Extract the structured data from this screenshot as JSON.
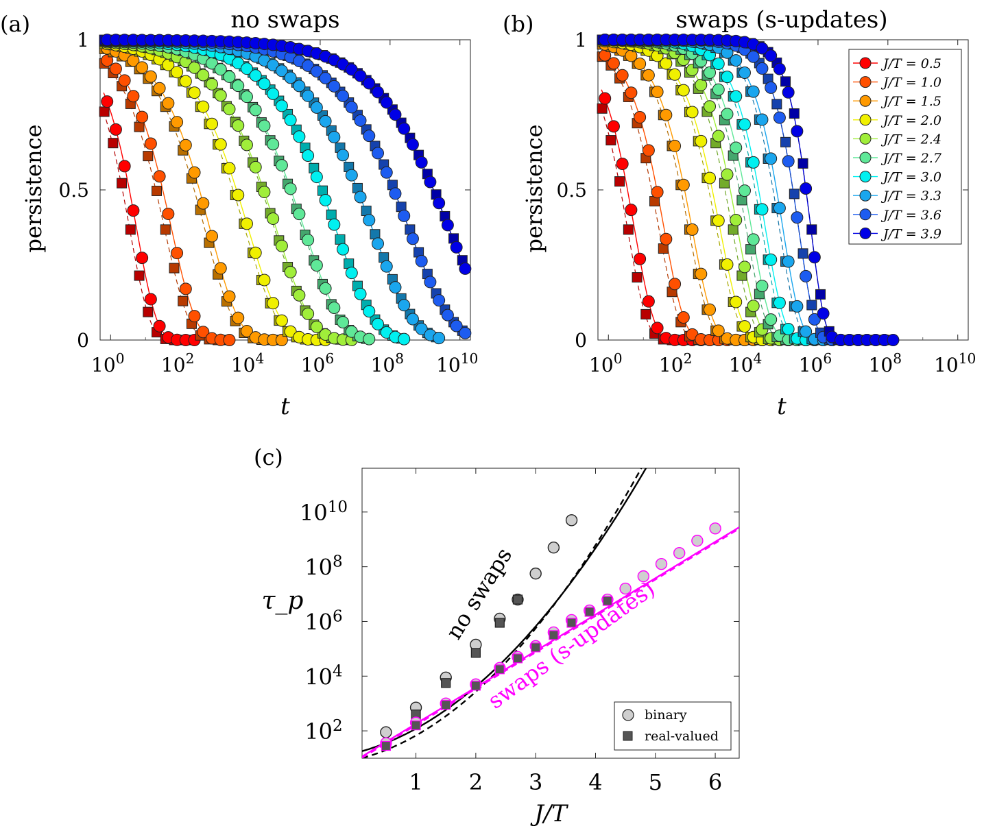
{
  "chart_data": [
    {
      "panel": "(a)",
      "title": "no swaps",
      "type": "scatter",
      "xlabel": "t",
      "ylabel": "persistence",
      "xscale": "log",
      "xlim_log10": [
        -0.3,
        10.3
      ],
      "ylim": [
        0,
        1
      ],
      "xtick_exponents": [
        0,
        2,
        4,
        6,
        8,
        10
      ],
      "ytick_labels": [
        "0",
        "0.5",
        "1"
      ],
      "x_base_label": "10",
      "series": [
        {
          "name": "J/T = 0.5",
          "color": "#ff0000",
          "tau_log10": 0.75,
          "beta": 0.75,
          "dash_log10": 0.55,
          "x_log10_range": [
            -0.2,
            2.5
          ]
        },
        {
          "name": "J/T = 1.0",
          "color": "#ff5000",
          "tau_log10": 1.75,
          "beta": 0.62,
          "dash_log10": 1.55,
          "x_log10_range": [
            -0.2,
            3.5
          ]
        },
        {
          "name": "J/T = 1.5",
          "color": "#ff9a00",
          "tau_log10": 2.85,
          "beta": 0.52,
          "dash_log10": 2.7,
          "x_log10_range": [
            -0.2,
            4.9
          ]
        },
        {
          "name": "J/T = 2.0",
          "color": "#f0f000",
          "tau_log10": 3.95,
          "beta": 0.46,
          "dash_log10": 3.85,
          "x_log10_range": [
            -0.2,
            6.1
          ]
        },
        {
          "name": "J/T = 2.4",
          "color": "#a0ee3a",
          "tau_log10": 4.75,
          "beta": 0.43,
          "dash_log10": 4.7,
          "x_log10_range": [
            -0.2,
            6.8
          ]
        },
        {
          "name": "J/T = 2.7",
          "color": "#5fe898",
          "tau_log10": 5.55,
          "beta": 0.41,
          "dash_log10": 5.5,
          "x_log10_range": [
            -0.2,
            7.5
          ]
        },
        {
          "name": "J/T = 3.0",
          "color": "#00f0f0",
          "tau_log10": 6.45,
          "beta": 0.39,
          "dash_log10": 6.45,
          "x_log10_range": [
            -0.2,
            8.3
          ]
        },
        {
          "name": "J/T = 3.3",
          "color": "#1aa6ee",
          "tau_log10": 7.5,
          "beta": 0.37,
          "dash_log10": 7.5,
          "x_log10_range": [
            -0.2,
            9.4
          ]
        },
        {
          "name": "J/T = 3.6",
          "color": "#1d5cf0",
          "tau_log10": 8.55,
          "beta": 0.36,
          "dash_log10": 8.55,
          "x_log10_range": [
            -0.2,
            10.2
          ]
        },
        {
          "name": "J/T = 3.9",
          "color": "#0000e6",
          "tau_log10": 9.7,
          "beta": 0.35,
          "dash_log10": 9.7,
          "x_log10_range": [
            -0.2,
            10.2
          ]
        }
      ]
    },
    {
      "panel": "(b)",
      "title": "swaps (s-updates)",
      "type": "scatter",
      "xlabel": "t",
      "ylabel": "persistence",
      "xscale": "log",
      "xlim_log10": [
        -0.3,
        10.3
      ],
      "ylim": [
        0,
        1
      ],
      "xtick_exponents": [
        0,
        2,
        4,
        6,
        8,
        10
      ],
      "ytick_labels": [
        "0",
        "0.5",
        "1"
      ],
      "x_base_label": "10",
      "legend_position": "top-right",
      "legend": [
        "J/T = 0.5",
        "J/T = 1.0",
        "J/T = 1.5",
        "J/T = 2.0",
        "J/T = 2.4",
        "J/T = 2.7",
        "J/T = 3.0",
        "J/T = 3.3",
        "J/T = 3.6",
        "J/T = 3.9"
      ],
      "series": [
        {
          "name": "J/T = 0.5",
          "color": "#ff0000",
          "tau_log10": 0.75,
          "beta": 0.78,
          "dash_log10": 0.55
        },
        {
          "name": "J/T = 1.0",
          "color": "#ff5000",
          "tau_log10": 1.6,
          "beta": 0.75,
          "dash_log10": 1.45
        },
        {
          "name": "J/T = 1.5",
          "color": "#ff9a00",
          "tau_log10": 2.4,
          "beta": 0.72,
          "dash_log10": 2.3
        },
        {
          "name": "J/T = 2.0",
          "color": "#f0f000",
          "tau_log10": 3.2,
          "beta": 0.7,
          "dash_log10": 3.1
        },
        {
          "name": "J/T = 2.4",
          "color": "#a0ee3a",
          "tau_log10": 3.7,
          "beta": 0.75,
          "dash_log10": 3.55
        },
        {
          "name": "J/T = 2.7",
          "color": "#5fe898",
          "tau_log10": 4.1,
          "beta": 0.78,
          "dash_log10": 3.95
        },
        {
          "name": "J/T = 3.0",
          "color": "#00f0f0",
          "tau_log10": 4.5,
          "beta": 0.8,
          "dash_log10": 4.4
        },
        {
          "name": "J/T = 3.3",
          "color": "#1aa6ee",
          "tau_log10": 5.0,
          "beta": 0.85,
          "dash_log10": 4.9
        },
        {
          "name": "J/T = 3.6",
          "color": "#1d5cf0",
          "tau_log10": 5.45,
          "beta": 0.95,
          "dash_log10": 5.45
        },
        {
          "name": "J/T = 3.9",
          "color": "#0000e6",
          "tau_log10": 5.8,
          "beta": 1.1,
          "dash_log10": 5.8
        }
      ]
    },
    {
      "panel": "(c)",
      "type": "scatter",
      "xlabel": "J/T",
      "ylabel": "τ_p",
      "yscale": "log",
      "xlim": [
        0.1,
        6.4
      ],
      "ylim_log10": [
        1,
        11.6
      ],
      "xticks": [
        1,
        2,
        3,
        4,
        5,
        6
      ],
      "ytick_exponents": [
        2,
        4,
        6,
        8,
        10
      ],
      "y_base_label": "10",
      "legend_position": "bottom-right",
      "legend": [
        "binary",
        "real-valued"
      ],
      "series": [
        {
          "name": "no swaps – binary",
          "color": "#000000",
          "marker": "circle",
          "x": [
            0.5,
            1.0,
            1.5,
            2.0,
            2.4,
            2.7,
            3.0,
            3.3,
            3.6
          ],
          "y_log10": [
            1.95,
            2.85,
            3.95,
            5.15,
            6.1,
            6.8,
            7.75,
            8.7,
            9.7
          ]
        },
        {
          "name": "no swaps – real-valued",
          "color": "#000000",
          "marker": "square",
          "x": [
            1.0,
            1.5,
            2.0,
            2.4,
            2.7
          ],
          "y_log10": [
            2.6,
            3.75,
            4.85,
            5.95,
            6.8
          ]
        },
        {
          "name": "swaps (s-updates) – binary",
          "color": "#ff00ff",
          "marker": "circle",
          "x": [
            0.5,
            1.0,
            1.5,
            2.0,
            2.4,
            2.7,
            3.0,
            3.3,
            3.6,
            3.9,
            4.2,
            4.5,
            4.8,
            5.1,
            5.4,
            5.7,
            6.0
          ],
          "y_log10": [
            1.55,
            2.3,
            3.0,
            3.7,
            4.3,
            4.7,
            5.1,
            5.6,
            6.05,
            6.4,
            6.8,
            7.2,
            7.65,
            8.1,
            8.5,
            8.95,
            9.4
          ]
        },
        {
          "name": "swaps (s-updates) – real-valued",
          "color": "#ff00ff",
          "marker": "square",
          "x": [
            0.5,
            1.0,
            1.5,
            2.0,
            2.4,
            2.7,
            3.0,
            3.3,
            3.6,
            3.9,
            4.2
          ],
          "y_log10": [
            1.45,
            2.2,
            2.95,
            3.65,
            4.25,
            4.65,
            5.05,
            5.5,
            5.95,
            6.35,
            6.75
          ]
        }
      ],
      "fits": [
        {
          "name": "no swaps fit (solid)",
          "color": "#000000",
          "a": 1.2,
          "b": 0.55,
          "c": 0.33
        },
        {
          "name": "no swaps fit (dashed)",
          "color": "#000000",
          "a": 0.95,
          "b": 0.52,
          "c": 0.36
        },
        {
          "name": "swaps fit (solid)",
          "color": "#ff00ff",
          "a": 0.93,
          "b": 1.33,
          "c": 0.0
        },
        {
          "name": "swaps fit (dashed)",
          "color": "#ff00ff",
          "a": 0.88,
          "b": 1.33,
          "c": 0.0
        }
      ],
      "annotations": [
        "no swaps",
        "swaps (s-updates)"
      ]
    }
  ]
}
